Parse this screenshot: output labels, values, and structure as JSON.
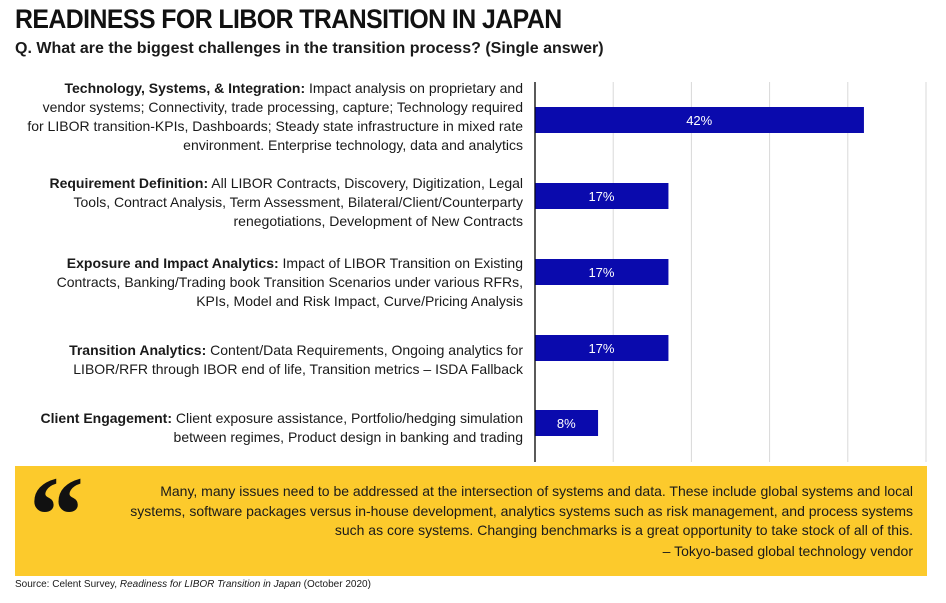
{
  "header": {
    "title": "READINESS FOR LIBOR TRANSITION IN JAPAN",
    "subtitle": "Q. What are the biggest challenges in the transition process? (Single answer)"
  },
  "chart_data": {
    "type": "bar",
    "orientation": "horizontal",
    "title": "READINESS FOR LIBOR TRANSITION IN JAPAN",
    "subtitle": "Q. What are the biggest challenges in the transition process? (Single answer)",
    "categories": [
      {
        "name": "Technology, Systems, & Integration:",
        "description": "Impact analysis on proprietary and vendor systems; Connectivity, trade processing, capture; Technology required for LIBOR transition-KPIs, Dashboards; Steady state infrastructure in mixed rate environment.  Enterprise technology, data and analytics"
      },
      {
        "name": "Requirement Definition:",
        "description": "All LIBOR Contracts, Discovery, Digitization, Legal Tools, Contract Analysis, Term Assessment, Bilateral/Client/Counterparty renegotiations, Development of New Contracts"
      },
      {
        "name": "Exposure and Impact Analytics:",
        "description": "Impact of LIBOR Transition on Existing Contracts, Banking/Trading book Transition Scenarios under various RFRs, KPIs, Model and Risk Impact, Curve/Pricing Analysis"
      },
      {
        "name": "Transition Analytics:",
        "description": "Content/Data Requirements, Ongoing analytics for LIBOR/RFR through IBOR end of life, Transition metrics – ISDA Fallback"
      },
      {
        "name": "Client Engagement:",
        "description": "Client exposure assistance, Portfolio/hedging simulation between regimes, Product  design in banking and trading"
      }
    ],
    "values": [
      42,
      17,
      17,
      17,
      8
    ],
    "data_labels": [
      "42%",
      "17%",
      "17%",
      "17%",
      "8%"
    ],
    "xlim": [
      0,
      50
    ],
    "gridline_step": 10,
    "grid": true,
    "xlabel": "",
    "ylabel": "",
    "bar_color": "#0a0aad",
    "grid_color": "#d9d9d9"
  },
  "quote": {
    "text": "Many, many issues need to be addressed at the intersection of systems and data. These include global systems and local systems, software packages versus in-house development,  analytics systems such as risk management, and process systems such as core systems. Changing benchmarks is a great opportunity  to take stock of all of this.",
    "attribution": "– Tokyo-based global technology vendor",
    "mark": "“",
    "background": "#fcca2c"
  },
  "source": {
    "prefix": "Source: Celent Survey, ",
    "title": "Readiness for LIBOR Transition in Japan",
    "suffix": " (October 2020)"
  }
}
